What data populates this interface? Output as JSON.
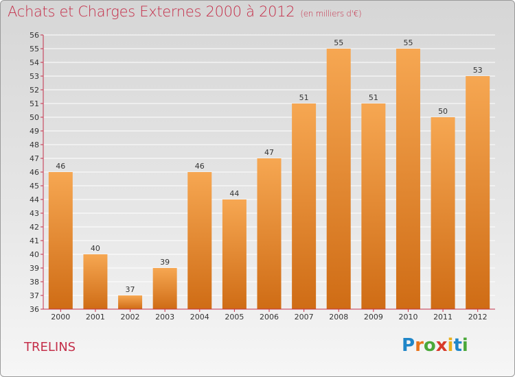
{
  "title": "Achats et Charges Externes 2000 à 2012",
  "subtitle": "(en milliers d'€)",
  "place": "TRELINS",
  "logo": {
    "letters": [
      "P",
      "r",
      "o",
      "x",
      "i",
      "t",
      "i"
    ],
    "colors": [
      "#1f86c8",
      "#e8741c",
      "#4aa83a",
      "#d83a2a",
      "#e8b01c",
      "#1f86c8",
      "#4aa83a"
    ]
  },
  "colors": {
    "bar_top": "#f6a752",
    "bar_bottom": "#cf6c15",
    "text": "#c42e49",
    "axis": "#c42e49"
  },
  "chart_data": {
    "type": "bar",
    "categories": [
      "2000",
      "2001",
      "2002",
      "2003",
      "2004",
      "2005",
      "2006",
      "2007",
      "2008",
      "2009",
      "2010",
      "2011",
      "2012"
    ],
    "values": [
      46,
      40,
      37,
      39,
      46,
      44,
      47,
      51,
      55,
      51,
      55,
      50,
      53
    ],
    "ylim": [
      36,
      56
    ],
    "yticks": [
      36,
      37,
      38,
      39,
      40,
      41,
      42,
      43,
      44,
      45,
      46,
      47,
      48,
      49,
      50,
      51,
      52,
      53,
      54,
      55,
      56
    ],
    "grid": true,
    "title": "Achats et Charges Externes 2000 à 2012",
    "xlabel": "",
    "ylabel": ""
  }
}
